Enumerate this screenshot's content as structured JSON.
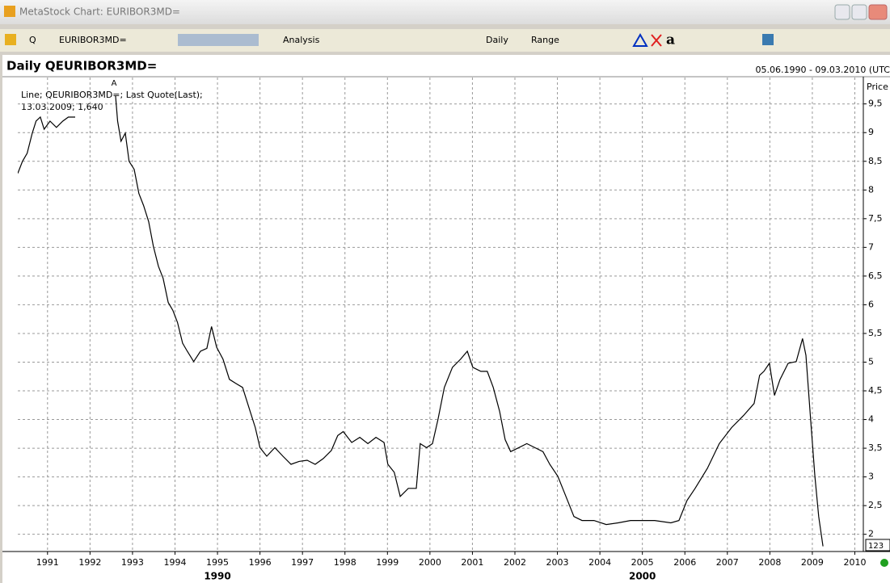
{
  "window": {
    "title": "MetaStock Chart: EURIBOR3MD="
  },
  "toolbar": {
    "quote_button": "Q",
    "symbol": "EURIBOR3MD=",
    "analysis": "Analysis",
    "periodicity": "Daily",
    "range": "Range",
    "text_tool": "a"
  },
  "chart_data": {
    "type": "line",
    "title": "Daily QEURIBOR3MD=",
    "date_range": "05.06.1990 - 09.03.2010 (UTC",
    "y_axis_label": "Price",
    "legend_text": "Line; QEURIBOR3MD=; Last Quote(Last);",
    "cursor_text": "13.03.2009; 1,640",
    "marker_label": "A",
    "corner_label": "123",
    "series": [
      {
        "name": "QEURIBOR3MD=",
        "color": "#000000",
        "x": [
          1990.3,
          1990.41,
          1990.52,
          1990.64,
          1990.73,
          1990.83,
          1990.92,
          1991.06,
          1991.21,
          1991.36,
          1991.49,
          1991.65,
          null,
          1992.6,
          1992.65,
          1992.73,
          1992.83,
          1992.92,
          1993.04,
          1993.15,
          1993.26,
          1993.38,
          1993.49,
          1993.61,
          1993.72,
          1993.84,
          1993.95,
          1994.06,
          1994.18,
          1994.29,
          1994.44,
          1994.6,
          1994.75,
          1994.86,
          1994.98,
          1995.13,
          1995.28,
          1995.43,
          1995.59,
          1995.74,
          1995.89,
          1996.0,
          1996.16,
          1996.35,
          1996.54,
          1996.73,
          1996.92,
          1997.11,
          1997.3,
          1997.49,
          1997.68,
          1997.83,
          1997.96,
          1998.16,
          1998.35,
          1998.54,
          1998.73,
          1998.92,
          1999.01,
          1999.16,
          1999.3,
          1999.49,
          1999.68,
          1999.77,
          1999.92,
          2000.06,
          2000.19,
          2000.34,
          2000.53,
          2000.72,
          2000.88,
          2001.01,
          2001.2,
          2001.35,
          2001.49,
          2001.64,
          2001.77,
          2001.9,
          2002.09,
          2002.28,
          2002.47,
          2002.66,
          2002.82,
          2003.01,
          2003.2,
          2003.39,
          2003.58,
          2003.86,
          2004.15,
          2004.43,
          2004.72,
          2005.01,
          2005.29,
          2005.67,
          2005.86,
          2006.05,
          2006.24,
          2006.53,
          2006.81,
          2007.1,
          2007.38,
          2007.63,
          2007.76,
          2007.86,
          2007.99,
          2008.11,
          2008.24,
          2008.43,
          2008.62,
          2008.77,
          2008.85,
          2008.96,
          2009.06,
          2009.15,
          2009.25
        ],
        "values": [
          8.29,
          8.5,
          8.64,
          8.99,
          9.2,
          9.27,
          9.06,
          9.2,
          9.09,
          9.2,
          9.27,
          9.27,
          null,
          9.65,
          9.2,
          8.85,
          8.99,
          8.5,
          8.36,
          7.94,
          7.73,
          7.45,
          7.02,
          6.67,
          6.46,
          6.04,
          5.9,
          5.69,
          5.33,
          5.19,
          5.01,
          5.19,
          5.24,
          5.62,
          5.26,
          5.05,
          4.7,
          4.63,
          4.56,
          4.21,
          3.86,
          3.51,
          3.36,
          3.51,
          3.36,
          3.22,
          3.27,
          3.29,
          3.22,
          3.32,
          3.46,
          3.72,
          3.79,
          3.6,
          3.69,
          3.58,
          3.69,
          3.6,
          3.22,
          3.08,
          2.66,
          2.8,
          2.8,
          3.58,
          3.51,
          3.58,
          4.0,
          4.56,
          4.91,
          5.05,
          5.19,
          4.91,
          4.84,
          4.84,
          4.56,
          4.14,
          3.65,
          3.44,
          3.51,
          3.58,
          3.51,
          3.44,
          3.22,
          3.01,
          2.66,
          2.31,
          2.24,
          2.24,
          2.17,
          2.2,
          2.24,
          2.24,
          2.24,
          2.2,
          2.24,
          2.59,
          2.8,
          3.15,
          3.58,
          3.86,
          4.07,
          4.28,
          4.77,
          4.84,
          4.98,
          4.42,
          4.7,
          4.98,
          5.01,
          5.41,
          5.12,
          4.0,
          3.01,
          2.31,
          1.79
        ]
      }
    ],
    "xlim": [
      1990.3,
      2010.2
    ],
    "xticks": [
      1991,
      1992,
      1993,
      1994,
      1995,
      1996,
      1997,
      1998,
      1999,
      2000,
      2001,
      2002,
      2003,
      2004,
      2005,
      2006,
      2007,
      2008,
      2009,
      2010
    ],
    "major_xticks": [
      {
        "value": 1995,
        "label": "1990"
      },
      {
        "value": 2005,
        "label": "2000"
      }
    ],
    "ylim": [
      1.7,
      9.96
    ],
    "yticks": [
      2,
      {
        "value": 2.5,
        "label": "2,5"
      },
      3,
      {
        "value": 3.5,
        "label": "3,5"
      },
      4,
      {
        "value": 4.5,
        "label": "4,5"
      },
      5,
      {
        "value": 5.5,
        "label": "5,5"
      },
      6,
      {
        "value": 6.5,
        "label": "6,5"
      },
      7,
      {
        "value": 7.5,
        "label": "7,5"
      },
      8,
      {
        "value": 8.5,
        "label": "8,5"
      },
      9,
      {
        "value": 9.5,
        "label": "9,5"
      }
    ],
    "grid": true,
    "axis_side": "right"
  }
}
